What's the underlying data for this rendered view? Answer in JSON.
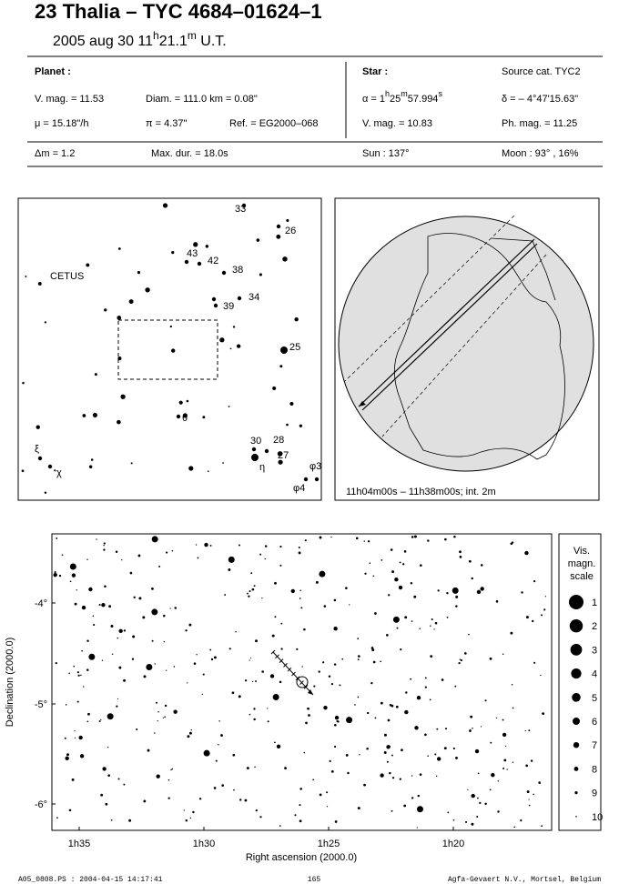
{
  "header": {
    "title": "23 Thalia  –  TYC 4684–01624–1",
    "date": "2005 aug 30  11",
    "hour_sup": "h",
    "minutes": "21.1",
    "min_sup": "m",
    "timescale": " U.T."
  },
  "info": {
    "planet_label": "Planet :",
    "vmag": "V. mag. = 11.53",
    "diam": "Diam. = 111.0 km = 0.08\"",
    "mu": "μ =  15.18\"/h",
    "parallax": "π =  4.37\"",
    "ref": "Ref. = EG2000–068",
    "star_label": "Star :",
    "source": "Source cat.  TYC2",
    "alpha": "α =  1",
    "alpha_h": "h",
    "alpha_min": "25",
    "alpha_m": "m",
    "alpha_sec": "57.994",
    "alpha_s": "s",
    "delta": "δ = – 4°47'15.63\"",
    "star_vmag": "V. mag. = 10.83",
    "phmag": "Ph. mag. = 11.25",
    "dm": "Δm = 1.2",
    "maxdur": "Max. dur. = 18.0s",
    "sun": "Sun : 137°",
    "moon": "Moon :  93° , 16%"
  },
  "finder": {
    "constellation": "CETUS",
    "labels": [
      "33",
      "26",
      "43",
      "42",
      "38",
      "34",
      "39",
      "25",
      "θ",
      "30",
      "28",
      "27",
      "η",
      "ξ",
      "χ",
      "φ3",
      "φ4"
    ]
  },
  "globe": {
    "caption": "11h04m00s – 11h38m00s; int.  2m"
  },
  "starchart": {
    "yticks": [
      "-4°",
      "-5°",
      "-6°"
    ],
    "xticks": [
      "1h35",
      "1h30",
      "1h25",
      "1h20"
    ],
    "ylabel": "Declination (2000.0)",
    "xlabel": "Right ascension (2000.0)",
    "scale_title": [
      "Vis.",
      "magn.",
      "scale"
    ],
    "scale": [
      "1",
      "2",
      "3",
      "4",
      "5",
      "6",
      "7",
      "8",
      "9",
      "10"
    ]
  },
  "footer": {
    "file": "A05_0808.PS : 2004-04-15 14:17:41",
    "page": "165",
    "publisher": "Agfa-Gevaert N.V., Mortsel, Belgium"
  }
}
